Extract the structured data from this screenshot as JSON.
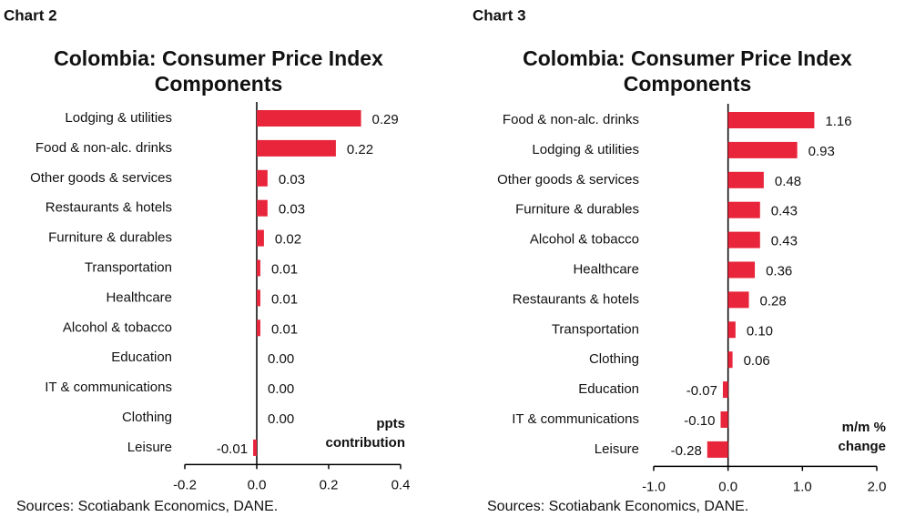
{
  "chart_data": [
    {
      "type": "bar",
      "chart_label": "Chart 2",
      "title": [
        "Colombia: Consumer Price Index",
        "Components"
      ],
      "categories": [
        "Lodging & utilities",
        "Food & non-alc. drinks",
        "Other goods & services",
        "Restaurants & hotels",
        "Furniture & durables",
        "Transportation",
        "Healthcare",
        "Alcohol & tobacco",
        "Education",
        "IT & communications",
        "Clothing",
        "Leisure"
      ],
      "values": [
        0.29,
        0.22,
        0.03,
        0.03,
        0.02,
        0.01,
        0.01,
        0.01,
        0,
        0,
        0,
        -0.01
      ],
      "value_labels": [
        "0.29",
        "0.22",
        "0.03",
        "0.03",
        "0.02",
        "0.01",
        "0.01",
        "0.01",
        "0.00",
        "0.00",
        "0.00",
        "-0.01"
      ],
      "color": "#e8253a",
      "xlim": [
        -0.2,
        0.4
      ],
      "xticks": [
        -0.2,
        {
          "value": 0,
          "label": "0.0"
        },
        0.2,
        0.4
      ],
      "annotation": [
        "ppts",
        "contribution"
      ],
      "source": "Sources: Scotiabank Economics, DANE."
    },
    {
      "type": "bar",
      "chart_label": "Chart 3",
      "title": [
        "Colombia: Consumer Price Index",
        "Components"
      ],
      "categories": [
        "Food & non-alc. drinks",
        "Lodging & utilities",
        "Other goods & services",
        "Furniture & durables",
        "Alcohol & tobacco",
        "Healthcare",
        "Restaurants & hotels",
        "Transportation",
        "Clothing",
        "Education",
        "IT & communications",
        "Leisure"
      ],
      "values": [
        1.16,
        0.93,
        0.48,
        0.43,
        0.43,
        0.36,
        0.28,
        0.1,
        0.06,
        -0.07,
        -0.1,
        -0.28
      ],
      "value_labels": [
        "1.16",
        "0.93",
        "0.48",
        "0.43",
        "0.43",
        "0.36",
        "0.28",
        "0.10",
        "0.06",
        "-0.07",
        "-0.10",
        "-0.28"
      ],
      "color": "#e8253a",
      "xlim": [
        -1,
        2
      ],
      "xticks": [
        {
          "value": -1,
          "label": "-1.0"
        },
        {
          "value": 0,
          "label": "0.0"
        },
        {
          "value": 1,
          "label": "1.0"
        },
        {
          "value": 2,
          "label": "2.0"
        }
      ],
      "annotation": [
        "m/m %",
        "change"
      ],
      "source": "Sources: Scotiabank Economics, DANE."
    }
  ]
}
